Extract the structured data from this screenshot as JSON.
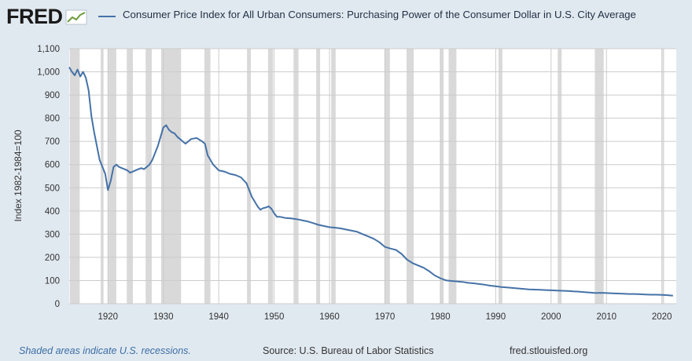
{
  "brand": {
    "name": "FRED"
  },
  "colors": {
    "series": "#4572a7",
    "recession": "#d9d9d9",
    "plot_bg": "#ffffff",
    "page_bg": "#e1e9f0",
    "grid": "#cccccc"
  },
  "footer": {
    "recession_note": "Shaded areas indicate U.S. recessions.",
    "source": "Source: U.S. Bureau of Labor Statistics",
    "site": "fred.stlouisfed.org"
  },
  "chart_data": {
    "type": "line",
    "title": "Consumer Price Index for All Urban Consumers: Purchasing Power of the Consumer Dollar in U.S. City Average",
    "xlabel": "",
    "ylabel": "Index 1982-1984=100",
    "xlim": [
      1913.0,
      2022.6
    ],
    "ylim": [
      0,
      1100
    ],
    "grid": true,
    "legend": "top",
    "x_ticks": [
      "1920",
      "1930",
      "1940",
      "1950",
      "1960",
      "1970",
      "1980",
      "1990",
      "2000",
      "2010",
      "2020"
    ],
    "y_ticks": [
      "0",
      "100",
      "200",
      "300",
      "400",
      "500",
      "600",
      "700",
      "800",
      "900",
      "1,000",
      "1,100"
    ],
    "recessions": [
      [
        1913.1,
        1914.9
      ],
      [
        1918.7,
        1919.2
      ],
      [
        1920.0,
        1921.5
      ],
      [
        1923.4,
        1924.5
      ],
      [
        1926.8,
        1927.9
      ],
      [
        1929.6,
        1933.2
      ],
      [
        1937.4,
        1938.5
      ],
      [
        1945.1,
        1945.8
      ],
      [
        1948.9,
        1949.8
      ],
      [
        1953.5,
        1954.4
      ],
      [
        1957.6,
        1958.3
      ],
      [
        1960.3,
        1961.1
      ],
      [
        1969.9,
        1970.9
      ],
      [
        1973.9,
        1975.2
      ],
      [
        1980.0,
        1980.6
      ],
      [
        1981.5,
        1982.9
      ],
      [
        1990.5,
        1991.2
      ],
      [
        2001.2,
        2001.9
      ],
      [
        2007.9,
        2009.5
      ],
      [
        2020.1,
        2020.4
      ]
    ],
    "series": [
      {
        "name": "",
        "x": [
          1913.0,
          1913.5,
          1914.0,
          1914.5,
          1915.0,
          1915.5,
          1916.0,
          1916.5,
          1917.0,
          1917.5,
          1918.0,
          1918.5,
          1919.0,
          1919.5,
          1920.0,
          1920.5,
          1921.0,
          1921.5,
          1922.0,
          1922.5,
          1923.0,
          1923.5,
          1924.0,
          1924.5,
          1925.0,
          1925.5,
          1926.0,
          1926.5,
          1927.0,
          1927.5,
          1928.0,
          1928.5,
          1929.0,
          1929.5,
          1930.0,
          1930.5,
          1931.0,
          1931.5,
          1932.0,
          1932.5,
          1933.0,
          1933.5,
          1934.0,
          1935.0,
          1936.0,
          1937.0,
          1937.5,
          1938.0,
          1939.0,
          1940.0,
          1941.0,
          1942.0,
          1943.0,
          1944.0,
          1945.0,
          1946.0,
          1946.5,
          1947.0,
          1947.5,
          1948.0,
          1948.5,
          1949.0,
          1949.5,
          1950.0,
          1950.5,
          1951.0,
          1952.0,
          1953.0,
          1954.0,
          1955.0,
          1956.0,
          1957.0,
          1958.0,
          1959.0,
          1960.0,
          1961.0,
          1962.0,
          1963.0,
          1964.0,
          1965.0,
          1966.0,
          1967.0,
          1968.0,
          1969.0,
          1970.0,
          1971.0,
          1972.0,
          1973.0,
          1974.0,
          1975.0,
          1976.0,
          1977.0,
          1978.0,
          1979.0,
          1980.0,
          1981.0,
          1982.0,
          1983.0,
          1984.0,
          1985.0,
          1986.0,
          1987.0,
          1988.0,
          1989.0,
          1990.0,
          1991.0,
          1992.0,
          1993.0,
          1994.0,
          1995.0,
          1996.0,
          1997.0,
          1998.0,
          1999.0,
          2000.0,
          2001.0,
          2002.0,
          2003.0,
          2004.0,
          2005.0,
          2006.0,
          2007.0,
          2008.0,
          2009.0,
          2010.0,
          2011.0,
          2012.0,
          2013.0,
          2014.0,
          2015.0,
          2016.0,
          2017.0,
          2018.0,
          2019.0,
          2020.0,
          2021.0,
          2022.0
        ],
        "values": [
          1020,
          1000,
          985,
          1010,
          980,
          1000,
          975,
          920,
          810,
          740,
          680,
          620,
          590,
          560,
          490,
          530,
          590,
          600,
          590,
          585,
          580,
          575,
          565,
          570,
          575,
          580,
          585,
          580,
          590,
          600,
          620,
          650,
          680,
          720,
          760,
          770,
          750,
          740,
          735,
          720,
          710,
          700,
          690,
          710,
          715,
          700,
          690,
          640,
          600,
          575,
          570,
          560,
          555,
          545,
          520,
          460,
          440,
          420,
          405,
          412,
          415,
          420,
          410,
          390,
          375,
          375,
          370,
          368,
          365,
          360,
          355,
          348,
          340,
          335,
          330,
          328,
          325,
          320,
          315,
          310,
          300,
          290,
          280,
          265,
          245,
          238,
          232,
          215,
          190,
          175,
          165,
          155,
          140,
          122,
          110,
          101,
          98,
          96,
          94,
          90,
          88,
          85,
          82,
          78,
          75,
          72,
          70,
          68,
          66,
          64,
          62,
          61,
          60,
          59,
          58,
          57,
          56,
          55,
          53,
          52,
          50,
          48,
          46,
          47,
          46,
          45,
          44,
          43,
          42,
          42,
          41,
          40,
          39,
          39,
          38,
          37,
          35
        ]
      }
    ]
  }
}
